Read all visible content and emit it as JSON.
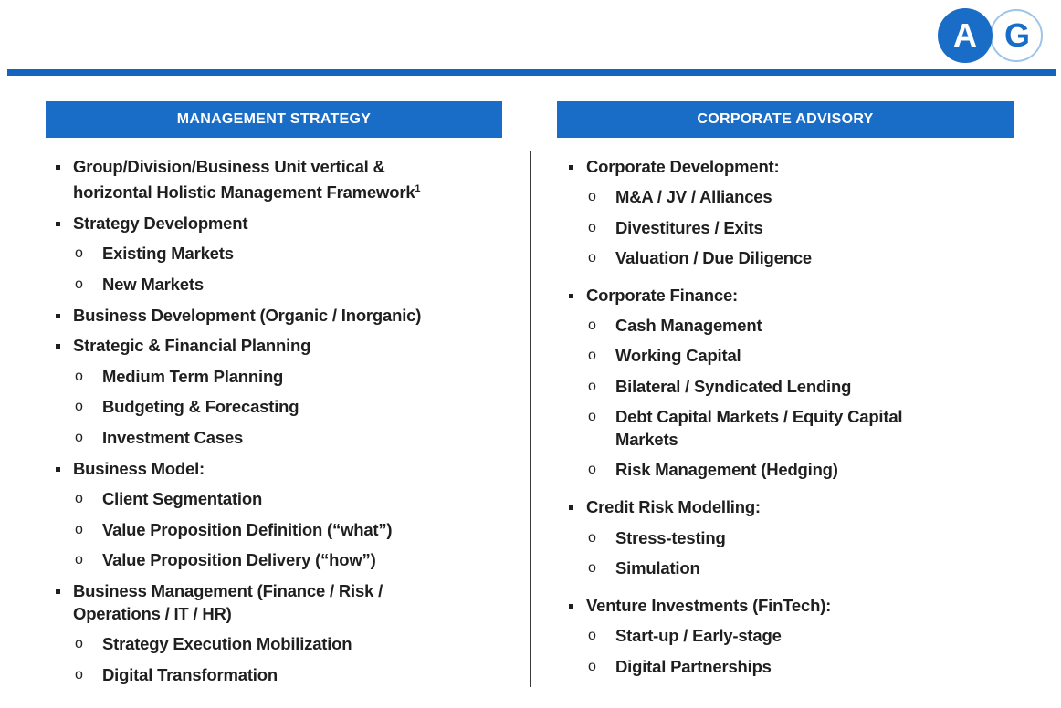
{
  "logo": {
    "left": "A",
    "right": "G",
    "colors": {
      "primary": "#1a6dc7",
      "ring": "#9ec4ea"
    }
  },
  "left": {
    "title": "MANAGEMENT STRATEGY",
    "items": [
      {
        "level": 1,
        "text": "Group/Division/Business Unit vertical &",
        "text2": "horizontal Holistic Management Framework",
        "sup": "1"
      },
      {
        "level": 1,
        "text": "Strategy Development"
      },
      {
        "level": 2,
        "text": "Existing Markets"
      },
      {
        "level": 2,
        "text": "New Markets"
      },
      {
        "level": 1,
        "text": "Business Development (Organic / Inorganic)"
      },
      {
        "level": 1,
        "text": "Strategic & Financial Planning"
      },
      {
        "level": 2,
        "text": "Medium Term Planning"
      },
      {
        "level": 2,
        "text": "Budgeting & Forecasting"
      },
      {
        "level": 2,
        "text": "Investment Cases"
      },
      {
        "level": 1,
        "text": "Business Model:"
      },
      {
        "level": 2,
        "text": "Client Segmentation"
      },
      {
        "level": 2,
        "text": "Value Proposition Definition (“what”)"
      },
      {
        "level": 2,
        "text": "Value Proposition Delivery (“how”)"
      },
      {
        "level": 1,
        "text": "Business Management (Finance / Risk /",
        "text2": "Operations / IT / HR)"
      },
      {
        "level": 2,
        "text": "Strategy Execution Mobilization"
      },
      {
        "level": 2,
        "text": "Digital Transformation"
      }
    ]
  },
  "right": {
    "title": "CORPORATE ADVISORY",
    "items": [
      {
        "level": 1,
        "text": "Corporate Development:"
      },
      {
        "level": 2,
        "text": "M&A / JV / Alliances"
      },
      {
        "level": 2,
        "text": "Divestitures / Exits"
      },
      {
        "level": 2,
        "text": "Valuation / Due Diligence"
      },
      {
        "level": 1,
        "text": "Corporate Finance:"
      },
      {
        "level": 2,
        "text": "Cash Management"
      },
      {
        "level": 2,
        "text": "Working Capital"
      },
      {
        "level": 2,
        "text": "Bilateral / Syndicated Lending"
      },
      {
        "level": 2,
        "text": "Debt Capital Markets / Equity Capital",
        "text2": "Markets"
      },
      {
        "level": 2,
        "text": "Risk Management (Hedging)"
      },
      {
        "level": 1,
        "text": "Credit Risk Modelling:"
      },
      {
        "level": 2,
        "text": "Stress-testing"
      },
      {
        "level": 2,
        "text": "Simulation"
      },
      {
        "level": 1,
        "text": "Venture Investments (FinTech):"
      },
      {
        "level": 2,
        "text": "Start-up / Early-stage"
      },
      {
        "level": 2,
        "text": "Digital Partnerships"
      }
    ]
  }
}
